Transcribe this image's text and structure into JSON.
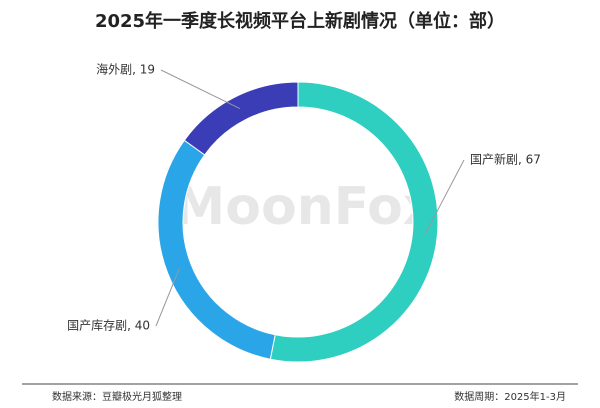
{
  "chart_data": {
    "type": "donut",
    "title": "2025年一季度长视频平台上新剧情况（单位：部）",
    "values": [
      67,
      40,
      19
    ],
    "value_labels": [
      "国产新剧, 67",
      "国产库存剧, 40",
      "海外剧, 19"
    ],
    "colors": [
      "#2ecfc0",
      "#2aa6e8",
      "#3a3db5"
    ],
    "watermark": "MoonFox",
    "source": "数据来源：豆瓣极光月狐整理",
    "period": "数据周期：2025年1-3月"
  }
}
